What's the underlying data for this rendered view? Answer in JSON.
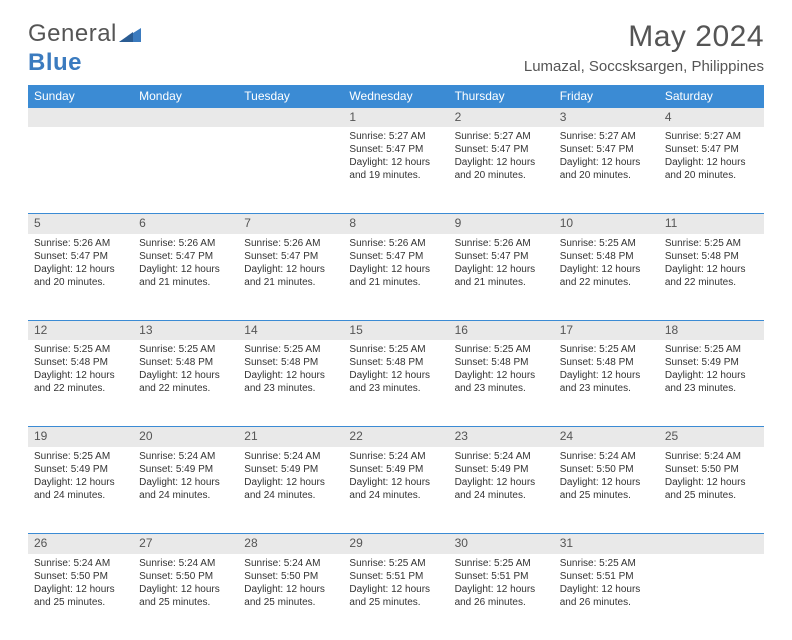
{
  "brand": {
    "part1": "General",
    "part2": "Blue"
  },
  "title": "May 2024",
  "subtitle": "Lumazal, Soccsksargen, Philippines",
  "colors": {
    "header_bg": "#3b8bd4",
    "header_text": "#ffffff",
    "daynum_bg": "#e9e9e9",
    "daynum_border": "#3b8bd4",
    "text": "#333333",
    "brand_blue": "#3b7bbf"
  },
  "typography": {
    "title_fontsize": 30,
    "subtitle_fontsize": 15,
    "dayheader_fontsize": 12,
    "cell_fontsize": 10
  },
  "day_headers": [
    "Sunday",
    "Monday",
    "Tuesday",
    "Wednesday",
    "Thursday",
    "Friday",
    "Saturday"
  ],
  "weeks": [
    [
      null,
      null,
      null,
      {
        "n": "1",
        "sunrise": "5:27 AM",
        "sunset": "5:47 PM",
        "daylight": "12 hours and 19 minutes."
      },
      {
        "n": "2",
        "sunrise": "5:27 AM",
        "sunset": "5:47 PM",
        "daylight": "12 hours and 20 minutes."
      },
      {
        "n": "3",
        "sunrise": "5:27 AM",
        "sunset": "5:47 PM",
        "daylight": "12 hours and 20 minutes."
      },
      {
        "n": "4",
        "sunrise": "5:27 AM",
        "sunset": "5:47 PM",
        "daylight": "12 hours and 20 minutes."
      }
    ],
    [
      {
        "n": "5",
        "sunrise": "5:26 AM",
        "sunset": "5:47 PM",
        "daylight": "12 hours and 20 minutes."
      },
      {
        "n": "6",
        "sunrise": "5:26 AM",
        "sunset": "5:47 PM",
        "daylight": "12 hours and 21 minutes."
      },
      {
        "n": "7",
        "sunrise": "5:26 AM",
        "sunset": "5:47 PM",
        "daylight": "12 hours and 21 minutes."
      },
      {
        "n": "8",
        "sunrise": "5:26 AM",
        "sunset": "5:47 PM",
        "daylight": "12 hours and 21 minutes."
      },
      {
        "n": "9",
        "sunrise": "5:26 AM",
        "sunset": "5:47 PM",
        "daylight": "12 hours and 21 minutes."
      },
      {
        "n": "10",
        "sunrise": "5:25 AM",
        "sunset": "5:48 PM",
        "daylight": "12 hours and 22 minutes."
      },
      {
        "n": "11",
        "sunrise": "5:25 AM",
        "sunset": "5:48 PM",
        "daylight": "12 hours and 22 minutes."
      }
    ],
    [
      {
        "n": "12",
        "sunrise": "5:25 AM",
        "sunset": "5:48 PM",
        "daylight": "12 hours and 22 minutes."
      },
      {
        "n": "13",
        "sunrise": "5:25 AM",
        "sunset": "5:48 PM",
        "daylight": "12 hours and 22 minutes."
      },
      {
        "n": "14",
        "sunrise": "5:25 AM",
        "sunset": "5:48 PM",
        "daylight": "12 hours and 23 minutes."
      },
      {
        "n": "15",
        "sunrise": "5:25 AM",
        "sunset": "5:48 PM",
        "daylight": "12 hours and 23 minutes."
      },
      {
        "n": "16",
        "sunrise": "5:25 AM",
        "sunset": "5:48 PM",
        "daylight": "12 hours and 23 minutes."
      },
      {
        "n": "17",
        "sunrise": "5:25 AM",
        "sunset": "5:48 PM",
        "daylight": "12 hours and 23 minutes."
      },
      {
        "n": "18",
        "sunrise": "5:25 AM",
        "sunset": "5:49 PM",
        "daylight": "12 hours and 23 minutes."
      }
    ],
    [
      {
        "n": "19",
        "sunrise": "5:25 AM",
        "sunset": "5:49 PM",
        "daylight": "12 hours and 24 minutes."
      },
      {
        "n": "20",
        "sunrise": "5:24 AM",
        "sunset": "5:49 PM",
        "daylight": "12 hours and 24 minutes."
      },
      {
        "n": "21",
        "sunrise": "5:24 AM",
        "sunset": "5:49 PM",
        "daylight": "12 hours and 24 minutes."
      },
      {
        "n": "22",
        "sunrise": "5:24 AM",
        "sunset": "5:49 PM",
        "daylight": "12 hours and 24 minutes."
      },
      {
        "n": "23",
        "sunrise": "5:24 AM",
        "sunset": "5:49 PM",
        "daylight": "12 hours and 24 minutes."
      },
      {
        "n": "24",
        "sunrise": "5:24 AM",
        "sunset": "5:50 PM",
        "daylight": "12 hours and 25 minutes."
      },
      {
        "n": "25",
        "sunrise": "5:24 AM",
        "sunset": "5:50 PM",
        "daylight": "12 hours and 25 minutes."
      }
    ],
    [
      {
        "n": "26",
        "sunrise": "5:24 AM",
        "sunset": "5:50 PM",
        "daylight": "12 hours and 25 minutes."
      },
      {
        "n": "27",
        "sunrise": "5:24 AM",
        "sunset": "5:50 PM",
        "daylight": "12 hours and 25 minutes."
      },
      {
        "n": "28",
        "sunrise": "5:24 AM",
        "sunset": "5:50 PM",
        "daylight": "12 hours and 25 minutes."
      },
      {
        "n": "29",
        "sunrise": "5:25 AM",
        "sunset": "5:51 PM",
        "daylight": "12 hours and 25 minutes."
      },
      {
        "n": "30",
        "sunrise": "5:25 AM",
        "sunset": "5:51 PM",
        "daylight": "12 hours and 26 minutes."
      },
      {
        "n": "31",
        "sunrise": "5:25 AM",
        "sunset": "5:51 PM",
        "daylight": "12 hours and 26 minutes."
      },
      null
    ]
  ],
  "labels": {
    "sunrise": "Sunrise:",
    "sunset": "Sunset:",
    "daylight": "Daylight:"
  }
}
